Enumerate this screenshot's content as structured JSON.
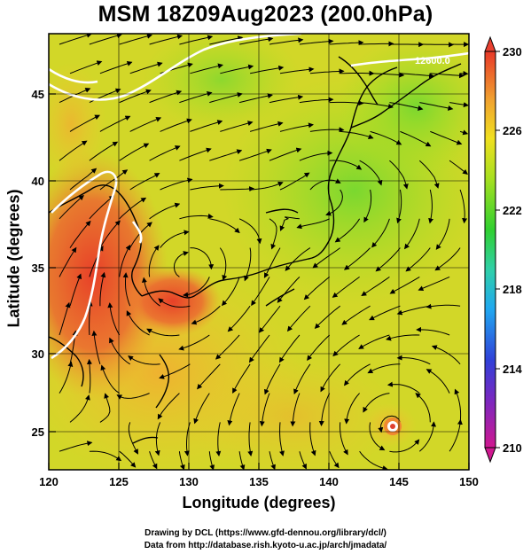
{
  "title": "MSM 18Z09Aug2023 (200.0hPa)",
  "axes": {
    "xlabel": "Longitude (degrees)",
    "ylabel": "Latitude  (degrees)",
    "x_ticks": [
      "120",
      "125",
      "130",
      "135",
      "140",
      "145",
      "150"
    ],
    "y_ticks": [
      "25",
      "30",
      "35",
      "40",
      "45"
    ],
    "xlim": [
      120,
      150
    ],
    "ylim": [
      22.4,
      47.6
    ]
  },
  "colorbar": {
    "ticks": [
      "230",
      "226",
      "222",
      "218",
      "214",
      "210"
    ],
    "range": [
      210,
      230
    ],
    "units_note": "",
    "colors": [
      "#d01890",
      "#4030d0",
      "#20a0f0",
      "#30c8a0",
      "#30d030",
      "#a8e020",
      "#f0e020",
      "#f0a030",
      "#e84030"
    ]
  },
  "contour_label": "12600.0",
  "credits": {
    "line1": "Drawing by DCL (https://www.gfd-dennou.org/library/dcl/)",
    "line2": "Data from http://database.rish.kyoto-u.ac.jp/arch/jmadata/"
  }
}
